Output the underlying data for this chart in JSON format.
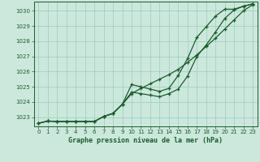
{
  "title": "Graphe pression niveau de la mer (hPa)",
  "bg_color": "#cce8dd",
  "grid_color": "#99ccbb",
  "line_color": "#1a5c2a",
  "x_ticks": [
    0,
    1,
    2,
    3,
    4,
    5,
    6,
    7,
    8,
    9,
    10,
    11,
    12,
    13,
    14,
    15,
    16,
    17,
    18,
    19,
    20,
    21,
    22,
    23
  ],
  "ylim": [
    1022.4,
    1030.6
  ],
  "xlim": [
    -0.5,
    23.5
  ],
  "yticks": [
    1023,
    1024,
    1025,
    1026,
    1027,
    1028,
    1029,
    1030
  ],
  "series_straight": [
    1022.6,
    1022.75,
    1022.72,
    1022.72,
    1022.72,
    1022.72,
    1022.72,
    1023.05,
    1023.25,
    1023.85,
    1024.55,
    1024.9,
    1025.2,
    1025.5,
    1025.8,
    1026.15,
    1026.6,
    1027.1,
    1027.65,
    1028.2,
    1028.8,
    1029.4,
    1030.0,
    1030.4
  ],
  "series_wiggly": [
    1022.6,
    1022.75,
    1022.72,
    1022.72,
    1022.72,
    1022.72,
    1022.72,
    1023.05,
    1023.25,
    1023.85,
    1025.15,
    1025.0,
    1024.85,
    1024.7,
    1024.9,
    1025.75,
    1026.85,
    1028.25,
    1028.95,
    1029.65,
    1030.1,
    1030.1,
    1030.3,
    1030.45
  ],
  "series_mid": [
    1022.6,
    1022.75,
    1022.72,
    1022.72,
    1022.72,
    1022.72,
    1022.72,
    1023.05,
    1023.25,
    1023.85,
    1024.65,
    1024.55,
    1024.45,
    1024.35,
    1024.55,
    1024.85,
    1025.7,
    1027.0,
    1027.75,
    1028.6,
    1029.5,
    1030.05,
    1030.3,
    1030.45
  ]
}
